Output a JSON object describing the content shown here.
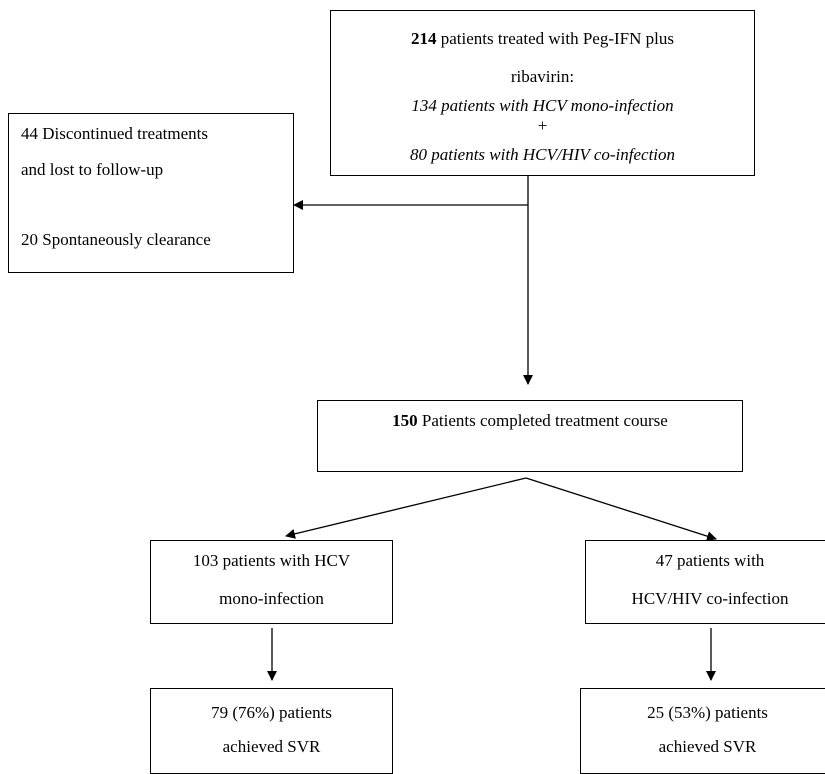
{
  "nodes": {
    "enrolled": {
      "count": "214",
      "text1": " patients treated with Peg-IFN plus",
      "text2": "ribavirin:",
      "mono": "134 patients with HCV mono-infection",
      "plus": "+",
      "coinf": "80 patients with HCV/HIV co-infection"
    },
    "excluded": {
      "line1": "44 Discontinued treatments",
      "line2": "and lost to follow-up",
      "line3": "20 Spontaneously clearance"
    },
    "completed": {
      "count": "150",
      "text": " Patients completed treatment course"
    },
    "mono_group": {
      "line1": "103 patients with HCV",
      "line2": "mono-infection"
    },
    "coinf_group": {
      "line1": "47 patients with",
      "line2": "HCV/HIV co-infection"
    },
    "mono_svr": {
      "line1": "79 (76%) patients",
      "line2": "achieved SVR"
    },
    "coinf_svr": {
      "line1": "25 (53%) patients",
      "line2": "achieved SVR"
    }
  }
}
